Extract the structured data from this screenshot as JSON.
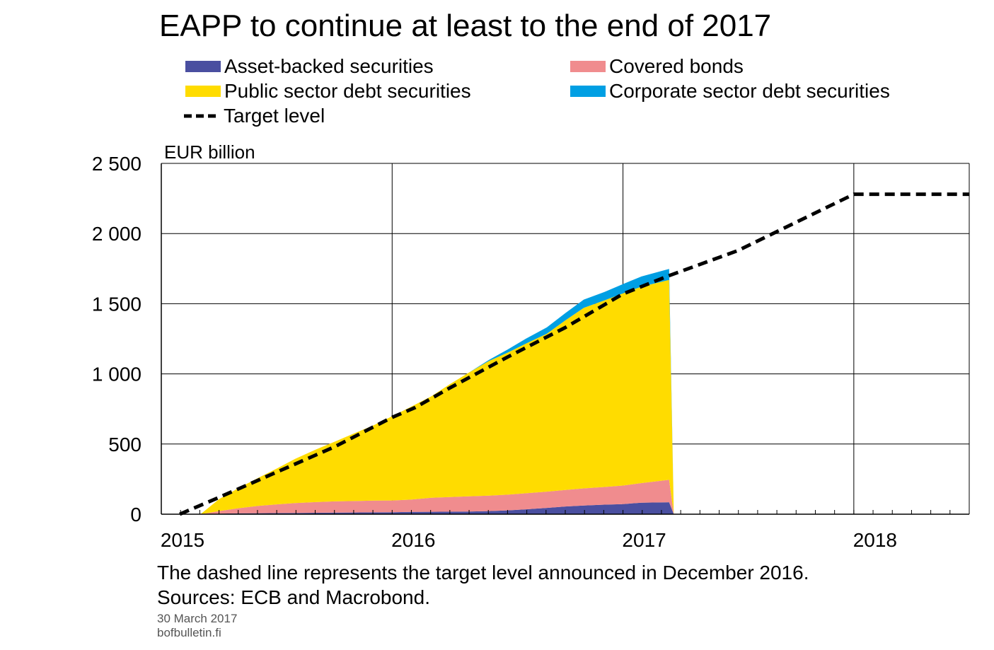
{
  "chart_data": {
    "type": "area",
    "title": "EAPP to continue at least to the end of 2017",
    "ylabel": "EUR billion",
    "ylim": [
      0,
      2500
    ],
    "yticks": [
      0,
      500,
      1000,
      1500,
      2000,
      2500
    ],
    "ytick_labels": [
      "0",
      "500",
      "1 000",
      "1 500",
      "2 000",
      "2 500"
    ],
    "xlim": [
      2015,
      2018.5
    ],
    "xticks": [
      2015,
      2016,
      2017,
      2018
    ],
    "xtick_labels": [
      "2015",
      "2016",
      "2017",
      "2018"
    ],
    "grid": true,
    "legend_placement": "top",
    "x": [
      2015.17,
      2015.25,
      2015.33,
      2015.42,
      2015.5,
      2015.58,
      2015.67,
      2015.75,
      2015.83,
      2015.92,
      2016.0,
      2016.08,
      2016.17,
      2016.25,
      2016.33,
      2016.42,
      2016.5,
      2016.58,
      2016.67,
      2016.75,
      2016.83,
      2016.92,
      2017.0,
      2017.08,
      2017.2
    ],
    "series": [
      {
        "name": "Asset-backed securities",
        "color": "#4a4fa0",
        "values": [
          0,
          4,
          6,
          7,
          8,
          9,
          10,
          11,
          12,
          13,
          14,
          16,
          17,
          18,
          19,
          22,
          27,
          35,
          45,
          55,
          62,
          68,
          72,
          82,
          85
        ]
      },
      {
        "name": "Covered bonds",
        "color": "#f08c8e",
        "values": [
          0,
          18,
          36,
          52,
          62,
          70,
          76,
          80,
          82,
          84,
          84,
          88,
          100,
          104,
          108,
          110,
          112,
          114,
          116,
          118,
          122,
          126,
          132,
          140,
          160
        ]
      },
      {
        "name": "Public sector debt securities",
        "color": "#ffdc00",
        "values": [
          0,
          85,
          140,
          200,
          255,
          315,
          375,
          425,
          478,
          537,
          600,
          660,
          723,
          805,
          880,
          960,
          1012,
          1067,
          1125,
          1208,
          1287,
          1330,
          1370,
          1400,
          1425
        ]
      },
      {
        "name": "Corporate sector debt securities",
        "color": "#009fe3",
        "values": [
          0,
          0,
          0,
          0,
          0,
          0,
          0,
          0,
          0,
          0,
          0,
          0,
          0,
          0,
          0,
          8,
          22,
          35,
          45,
          52,
          58,
          60,
          66,
          72,
          78
        ]
      }
    ],
    "target_level": {
      "name": "Target level",
      "color": "#000000",
      "x": [
        2015.08,
        2015.25,
        2015.5,
        2015.75,
        2016.0,
        2016.1,
        2016.25,
        2016.5,
        2016.75,
        2017.0,
        2017.2,
        2017.5,
        2018.0,
        2018.5
      ],
      "values": [
        0,
        120,
        300,
        480,
        690,
        760,
        900,
        1120,
        1330,
        1570,
        1700,
        1880,
        2280,
        2280
      ]
    }
  },
  "legend": [
    {
      "label": "Asset-backed securities",
      "color": "#4a4fa0",
      "kind": "fill"
    },
    {
      "label": "Covered bonds",
      "color": "#f08c8e",
      "kind": "fill"
    },
    {
      "label": "Public sector debt securities",
      "color": "#ffdc00",
      "kind": "fill"
    },
    {
      "label": "Corporate sector debt securities",
      "color": "#009fe3",
      "kind": "fill"
    },
    {
      "label": "Target level",
      "color": "#000000",
      "kind": "dashed"
    }
  ],
  "footnote": "The dashed line represents the target level announced in December 2016.",
  "sources": "Sources: ECB and Macrobond.",
  "date": "30 March 2017",
  "website": "bofbulletin.fi"
}
